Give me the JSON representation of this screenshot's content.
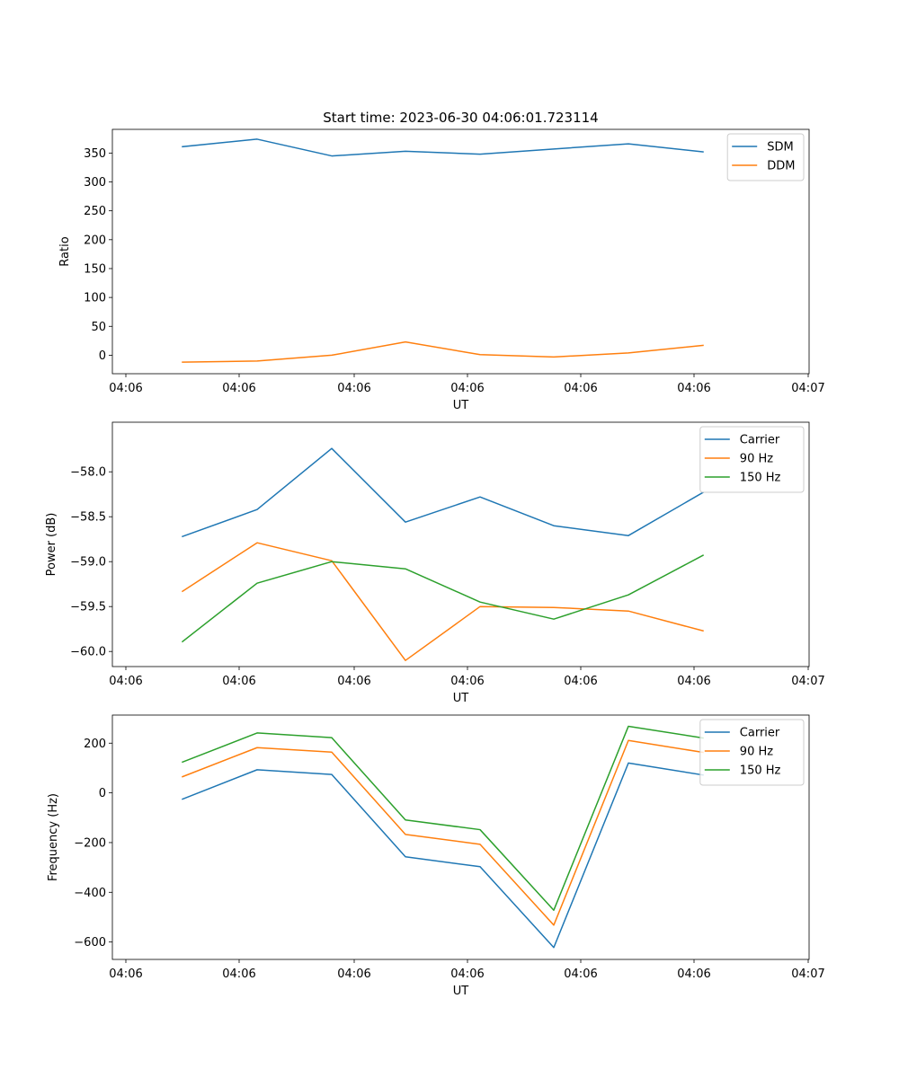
{
  "figure": {
    "title": "Start time: 2023-06-30 04:06:01.723114"
  },
  "chart_data": [
    {
      "type": "line",
      "xlabel": "UT",
      "ylabel": "Ratio",
      "x_ticks": [
        "04:06",
        "04:06",
        "04:06",
        "04:06",
        "04:06",
        "04:06",
        "04:07"
      ],
      "y_ticks": [
        0,
        50,
        100,
        150,
        200,
        250,
        300,
        350
      ],
      "ylim": [
        -32,
        391
      ],
      "legend_position": "top-right",
      "series": [
        {
          "name": "SDM",
          "color": "#1f77b4",
          "values": [
            361,
            374,
            345,
            353,
            348,
            357,
            366,
            352
          ]
        },
        {
          "name": "DDM",
          "color": "#ff7f0e",
          "values": [
            -12,
            -10,
            0,
            23,
            1,
            -3,
            4,
            17
          ]
        }
      ]
    },
    {
      "type": "line",
      "xlabel": "UT",
      "ylabel": "Power (dB)",
      "x_ticks": [
        "04:06",
        "04:06",
        "04:06",
        "04:06",
        "04:06",
        "04:06",
        "04:07"
      ],
      "y_ticks": [
        "−60.0",
        "−59.5",
        "−59.0",
        "−58.5",
        "−58.0"
      ],
      "y_tick_values": [
        -60.0,
        -59.5,
        -59.0,
        -58.5,
        -58.0
      ],
      "ylim": [
        -60.168,
        -57.448
      ],
      "legend_position": "top-right",
      "series": [
        {
          "name": "Carrier",
          "color": "#1f77b4",
          "values": [
            -58.72,
            -58.42,
            -57.74,
            -58.56,
            -58.28,
            -58.6,
            -58.71,
            -58.23
          ]
        },
        {
          "name": "90 Hz",
          "color": "#ff7f0e",
          "values": [
            -59.33,
            -58.79,
            -58.99,
            -60.1,
            -59.5,
            -59.51,
            -59.55,
            -59.77
          ]
        },
        {
          "name": "150 Hz",
          "color": "#2ca02c",
          "values": [
            -59.89,
            -59.24,
            -59.0,
            -59.08,
            -59.45,
            -59.64,
            -59.37,
            -58.93
          ]
        }
      ]
    },
    {
      "type": "line",
      "xlabel": "UT",
      "ylabel": "Frequency (Hz)",
      "x_ticks": [
        "04:06",
        "04:06",
        "04:06",
        "04:06",
        "04:06",
        "04:06",
        "04:07"
      ],
      "y_ticks": [
        "−600",
        "−400",
        "−200",
        "0",
        "200"
      ],
      "y_tick_values": [
        -600,
        -400,
        -200,
        0,
        200
      ],
      "ylim": [
        -670,
        313
      ],
      "legend_position": "top-right",
      "series": [
        {
          "name": "Carrier",
          "color": "#1f77b4",
          "values": [
            -25,
            93,
            74,
            -257,
            -297,
            -622,
            120,
            72
          ]
        },
        {
          "name": "90 Hz",
          "color": "#ff7f0e",
          "values": [
            65,
            182,
            164,
            -167,
            -207,
            -532,
            211,
            163
          ]
        },
        {
          "name": "150 Hz",
          "color": "#2ca02c",
          "values": [
            124,
            241,
            222,
            -109,
            -148,
            -472,
            268,
            221
          ]
        }
      ]
    }
  ]
}
